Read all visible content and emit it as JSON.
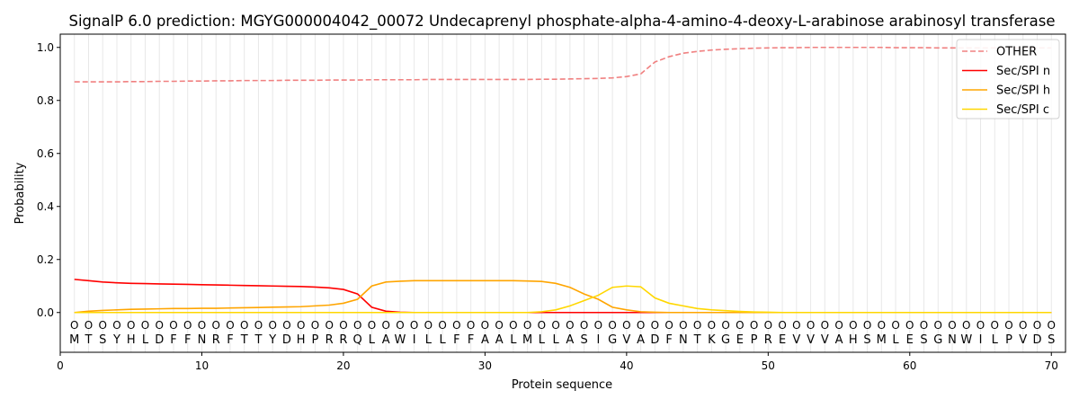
{
  "chart_data": {
    "type": "line",
    "title": "SignalP 6.0 prediction: MGYG000004042_00072 Undecaprenyl phosphate-alpha-4-amino-4-deoxy-L-arabinose arabinosyl transferase",
    "xlabel": "Protein sequence",
    "ylabel": "Probability",
    "xlim": [
      0,
      71
    ],
    "ylim": [
      -0.15,
      1.05
    ],
    "xticks": [
      0,
      10,
      20,
      30,
      40,
      50,
      60,
      70
    ],
    "yticks": [
      0.0,
      0.2,
      0.4,
      0.6,
      0.8,
      1.0
    ],
    "ytick_labels": [
      "0.0",
      "0.2",
      "0.4",
      "0.6",
      "0.8",
      "1.0"
    ],
    "legend_position": "top-right",
    "sequence": [
      "M",
      "T",
      "S",
      "Y",
      "H",
      "L",
      "D",
      "F",
      "F",
      "N",
      "R",
      "F",
      "T",
      "T",
      "Y",
      "D",
      "H",
      "P",
      "R",
      "R",
      "Q",
      "L",
      "A",
      "W",
      "I",
      "L",
      "L",
      "F",
      "F",
      "A",
      "A",
      "L",
      "M",
      "L",
      "L",
      "A",
      "S",
      "I",
      "G",
      "V",
      "A",
      "D",
      "F",
      "N",
      "T",
      "K",
      "G",
      "E",
      "P",
      "R",
      "E",
      "V",
      "V",
      "V",
      "A",
      "H",
      "S",
      "M",
      "L",
      "E",
      "S",
      "G",
      "N",
      "W",
      "I",
      "L",
      "P",
      "V",
      "D",
      "S"
    ],
    "state_label": "O",
    "series": [
      {
        "name": "OTHER",
        "color": "#f08080",
        "dashed": true,
        "values": [
          0.87,
          0.87,
          0.87,
          0.87,
          0.871,
          0.871,
          0.872,
          0.872,
          0.873,
          0.873,
          0.874,
          0.874,
          0.875,
          0.875,
          0.875,
          0.876,
          0.876,
          0.876,
          0.877,
          0.877,
          0.877,
          0.878,
          0.878,
          0.878,
          0.878,
          0.879,
          0.879,
          0.879,
          0.879,
          0.879,
          0.879,
          0.879,
          0.879,
          0.88,
          0.88,
          0.881,
          0.882,
          0.883,
          0.885,
          0.89,
          0.9,
          0.945,
          0.965,
          0.978,
          0.985,
          0.99,
          0.993,
          0.995,
          0.997,
          0.998,
          0.999,
          0.999,
          1.0,
          1.0,
          1.0,
          1.0,
          1.0,
          1.0,
          0.999,
          0.999,
          0.999,
          0.998,
          0.998,
          0.998,
          0.998,
          0.998,
          0.998,
          0.998,
          0.998,
          0.998
        ]
      },
      {
        "name": "Sec/SPI n",
        "color": "#ff0000",
        "dashed": false,
        "values": [
          0.125,
          0.12,
          0.115,
          0.112,
          0.11,
          0.109,
          0.108,
          0.107,
          0.106,
          0.105,
          0.104,
          0.103,
          0.102,
          0.101,
          0.1,
          0.099,
          0.098,
          0.096,
          0.093,
          0.087,
          0.07,
          0.02,
          0.005,
          0.001,
          0,
          0,
          0,
          0,
          0,
          0,
          0,
          0,
          0,
          0,
          0,
          0,
          0,
          0,
          0,
          0,
          0,
          0,
          0,
          0,
          0,
          0,
          0,
          0,
          0,
          0,
          0,
          0,
          0,
          0,
          0,
          0,
          0,
          0,
          0,
          0,
          0,
          0,
          0,
          0,
          0,
          0,
          0,
          0,
          0,
          0
        ]
      },
      {
        "name": "Sec/SPI h",
        "color": "#ffa500",
        "dashed": false,
        "values": [
          0,
          0.005,
          0.008,
          0.01,
          0.012,
          0.013,
          0.014,
          0.015,
          0.015,
          0.016,
          0.016,
          0.017,
          0.018,
          0.019,
          0.02,
          0.021,
          0.022,
          0.025,
          0.028,
          0.035,
          0.05,
          0.1,
          0.115,
          0.118,
          0.12,
          0.12,
          0.12,
          0.12,
          0.12,
          0.12,
          0.12,
          0.12,
          0.119,
          0.117,
          0.11,
          0.095,
          0.07,
          0.05,
          0.02,
          0.01,
          0.003,
          0.001,
          0,
          0,
          0,
          0,
          0,
          0,
          0,
          0,
          0,
          0,
          0,
          0,
          0,
          0,
          0,
          0,
          0,
          0,
          0,
          0,
          0,
          0,
          0,
          0,
          0,
          0,
          0,
          0
        ]
      },
      {
        "name": "Sec/SPI c",
        "color": "#ffd700",
        "dashed": false,
        "values": [
          0,
          0,
          0,
          0,
          0,
          0,
          0,
          0,
          0,
          0,
          0,
          0,
          0,
          0,
          0,
          0,
          0,
          0,
          0,
          0,
          0,
          0,
          0,
          0,
          0,
          0,
          0,
          0,
          0,
          0,
          0,
          0,
          0,
          0.003,
          0.01,
          0.025,
          0.045,
          0.065,
          0.095,
          0.1,
          0.097,
          0.055,
          0.035,
          0.025,
          0.015,
          0.01,
          0.007,
          0.004,
          0.002,
          0.001,
          0,
          0,
          0,
          0,
          0,
          0,
          0,
          0,
          0,
          0,
          0,
          0,
          0,
          0,
          0,
          0,
          0,
          0,
          0,
          0
        ]
      }
    ]
  }
}
